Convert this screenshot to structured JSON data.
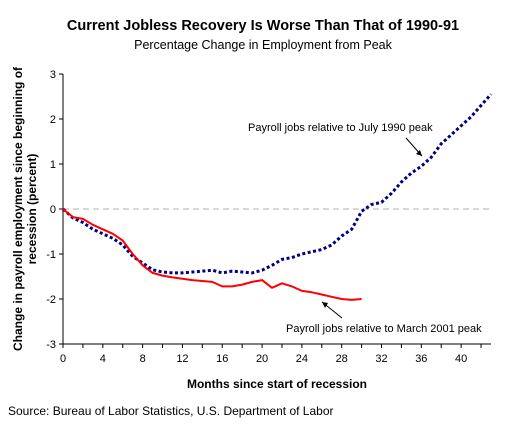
{
  "chart_data": {
    "type": "line",
    "title": "Current Jobless Recovery Is Worse Than That of 1990-91",
    "subtitle": "Percentage Change in Employment from Peak",
    "xlabel": "Months since start of recession",
    "ylabel": "Change in payroll employment since beginning of recession (percent)",
    "xlim": [
      0,
      43
    ],
    "ylim": [
      -3,
      3
    ],
    "x_ticks": [
      0,
      4,
      8,
      12,
      16,
      20,
      24,
      28,
      32,
      36,
      40
    ],
    "y_ticks": [
      -3,
      -2,
      -1,
      0,
      1,
      2,
      3
    ],
    "zero_line": true,
    "grid": false,
    "legend": "none",
    "series": [
      {
        "name": "Payroll jobs relative to July 1990 peak",
        "style": "dotted",
        "color": "#000080",
        "x": [
          0,
          1,
          2,
          3,
          4,
          5,
          6,
          7,
          8,
          9,
          10,
          11,
          12,
          13,
          14,
          15,
          16,
          17,
          18,
          19,
          20,
          21,
          22,
          23,
          24,
          25,
          26,
          27,
          28,
          29,
          30,
          31,
          32,
          33,
          34,
          35,
          36,
          37,
          38,
          39,
          40,
          41,
          42,
          43
        ],
        "y": [
          0.0,
          -0.2,
          -0.3,
          -0.45,
          -0.55,
          -0.65,
          -0.8,
          -1.05,
          -1.2,
          -1.35,
          -1.4,
          -1.42,
          -1.42,
          -1.4,
          -1.38,
          -1.36,
          -1.42,
          -1.38,
          -1.4,
          -1.42,
          -1.36,
          -1.25,
          -1.12,
          -1.08,
          -1.0,
          -0.95,
          -0.9,
          -0.8,
          -0.6,
          -0.45,
          -0.05,
          0.1,
          0.15,
          0.35,
          0.6,
          0.8,
          0.95,
          1.15,
          1.45,
          1.65,
          1.85,
          2.05,
          2.3,
          2.55
        ]
      },
      {
        "name": "Payroll jobs relative to March 2001 peak",
        "style": "solid",
        "color": "#ff0000",
        "x": [
          0,
          1,
          2,
          3,
          4,
          5,
          6,
          7,
          8,
          9,
          10,
          11,
          12,
          13,
          14,
          15,
          16,
          17,
          18,
          19,
          20,
          21,
          22,
          23,
          24,
          25,
          26,
          27,
          28,
          29,
          30
        ],
        "y": [
          0.0,
          -0.18,
          -0.22,
          -0.35,
          -0.45,
          -0.55,
          -0.7,
          -1.0,
          -1.25,
          -1.42,
          -1.48,
          -1.52,
          -1.55,
          -1.58,
          -1.6,
          -1.62,
          -1.72,
          -1.72,
          -1.68,
          -1.62,
          -1.58,
          -1.75,
          -1.65,
          -1.72,
          -1.82,
          -1.85,
          -1.9,
          -1.95,
          -2.0,
          -2.02,
          -2.0
        ]
      }
    ],
    "annotations": [
      {
        "text": "Payroll jobs relative to July 1990 peak",
        "series": 0
      },
      {
        "text": "Payroll jobs relative to March 2001 peak",
        "series": 1
      }
    ]
  },
  "source_note": "Source: Bureau of Labor Statistics, U.S. Department of Labor"
}
